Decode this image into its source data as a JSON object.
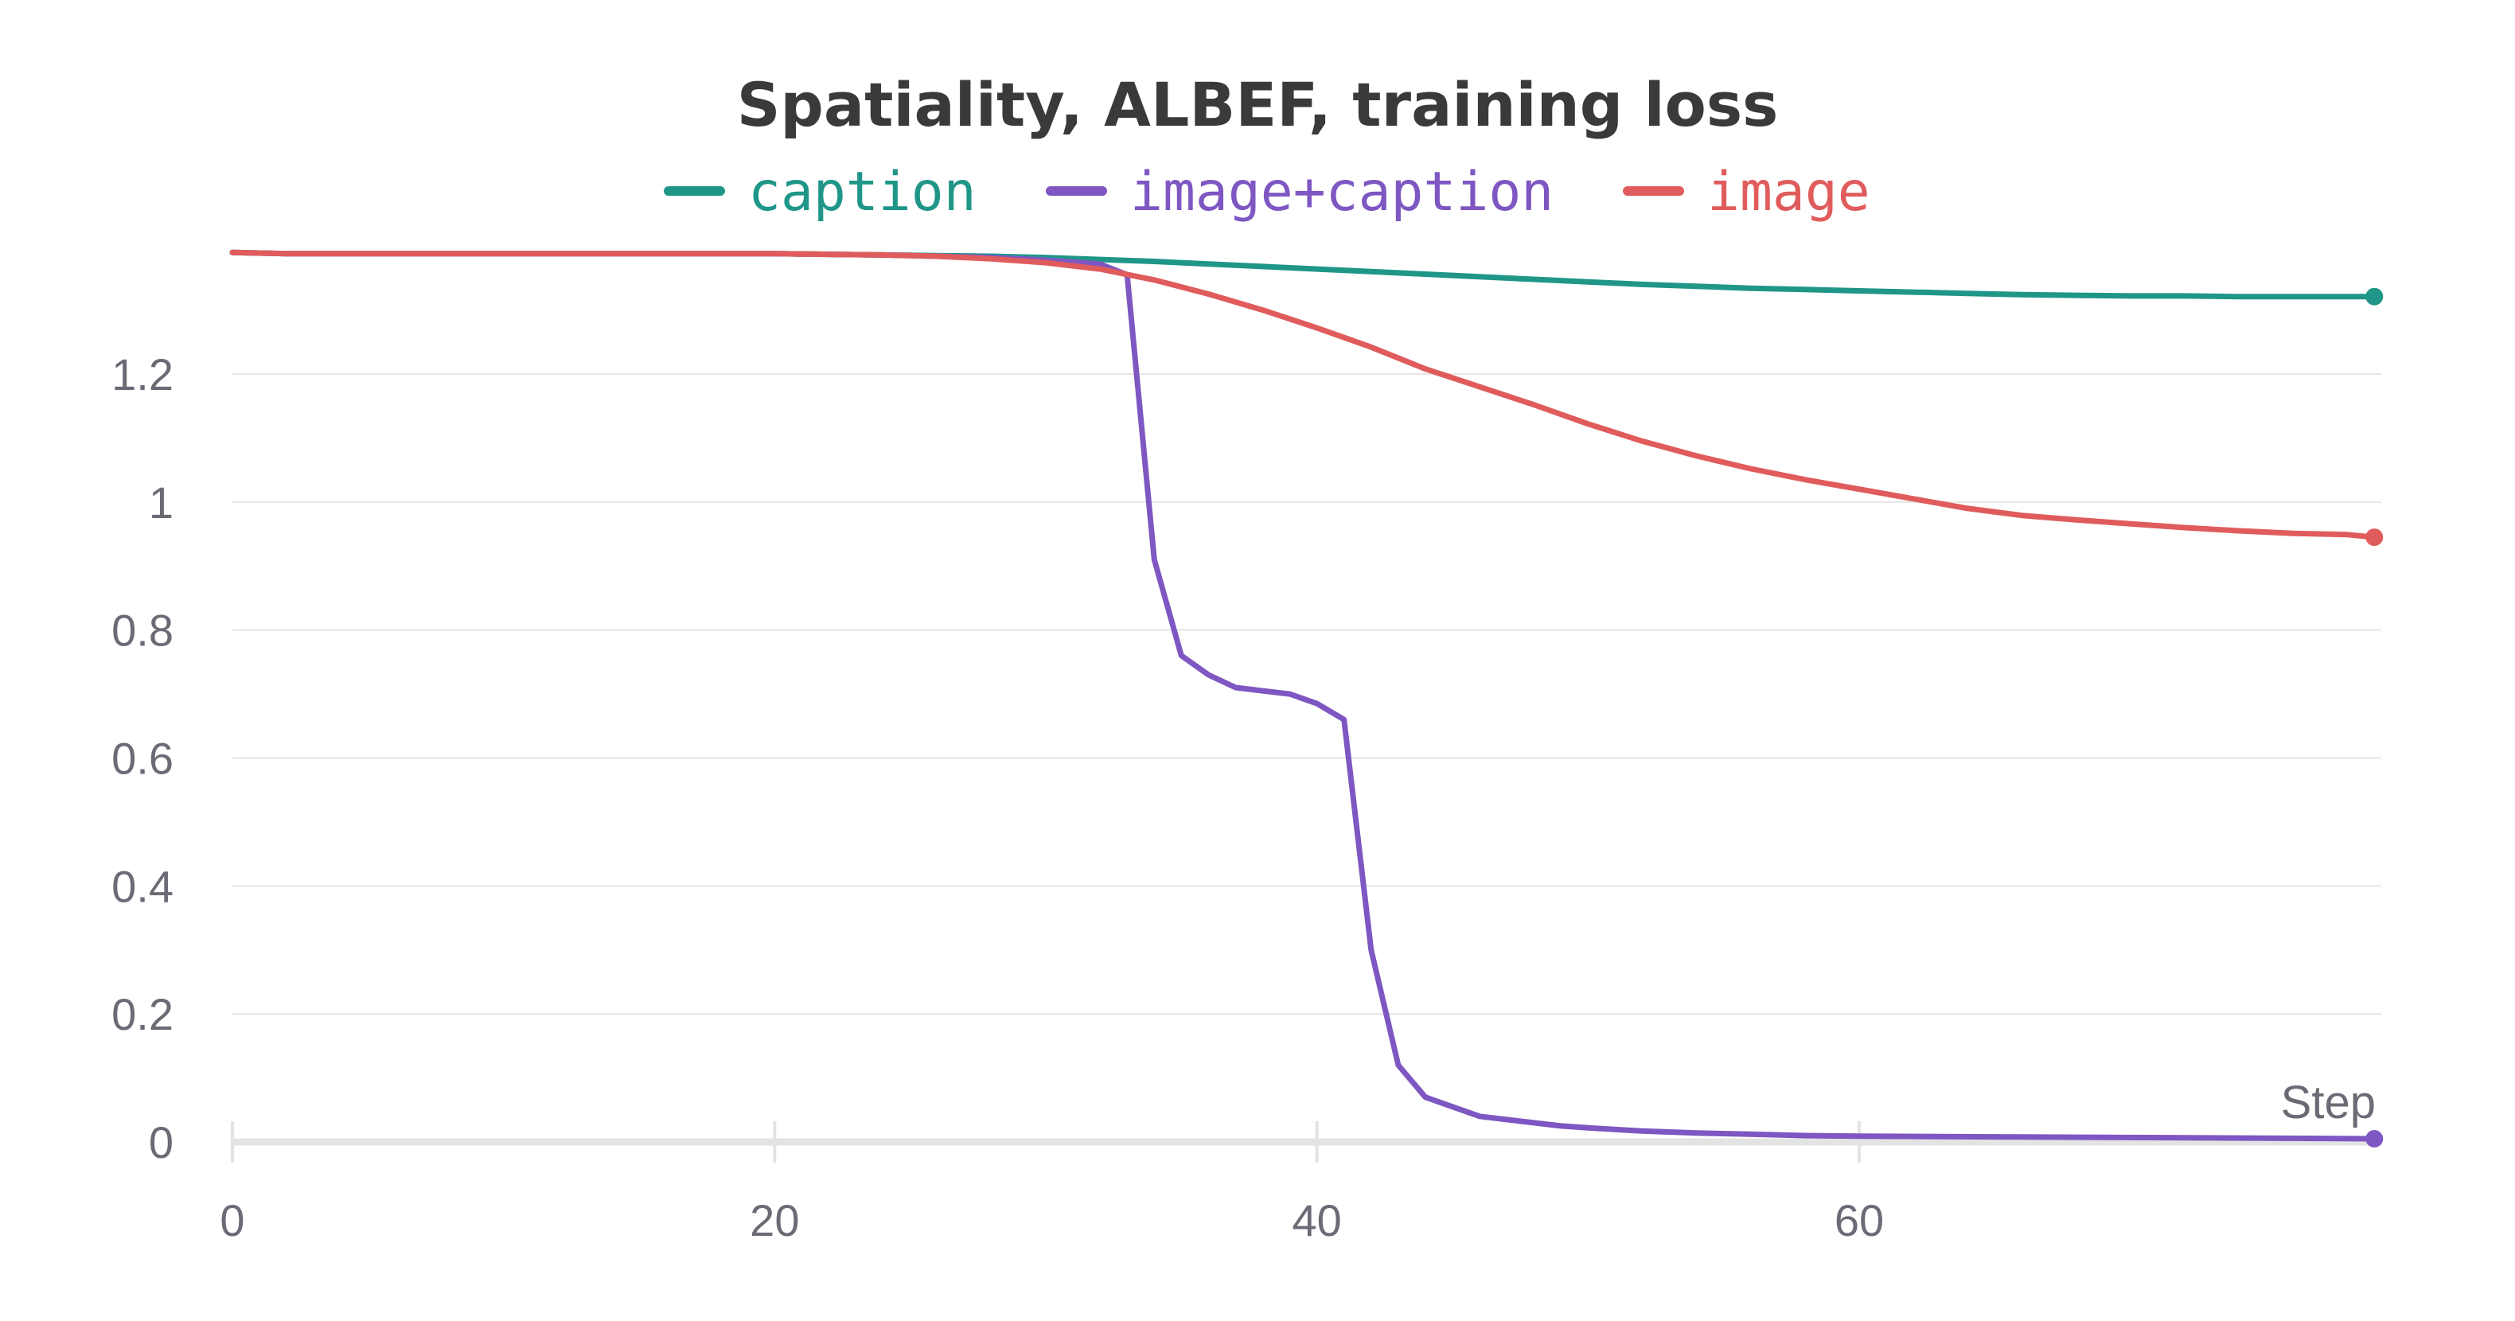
{
  "chart_data": {
    "type": "line",
    "title": "Spatiality, ALBEF, training loss",
    "xlabel": "Step",
    "ylabel": "",
    "xlim": [
      0,
      79
    ],
    "ylim": [
      0,
      1.39
    ],
    "x_ticks": [
      "0",
      "20",
      "40",
      "60"
    ],
    "x_tick_values": [
      0,
      20,
      40,
      60
    ],
    "y_ticks": [
      "0",
      "0.2",
      "0.4",
      "0.6",
      "0.8",
      "1",
      "1.2"
    ],
    "y_tick_values": [
      0,
      0.2,
      0.4,
      0.6,
      0.8,
      1,
      1.2
    ],
    "grid": true,
    "legend_position": "top",
    "series": [
      {
        "name": "caption",
        "color": "#1f9688",
        "x": [
          0,
          2,
          4,
          6,
          8,
          10,
          12,
          14,
          16,
          18,
          20,
          22,
          24,
          26,
          28,
          30,
          32,
          34,
          36,
          38,
          40,
          42,
          44,
          46,
          48,
          50,
          52,
          54,
          56,
          58,
          60,
          62,
          64,
          66,
          68,
          70,
          72,
          74,
          76,
          78,
          79
        ],
        "y": [
          1.39,
          1.388,
          1.388,
          1.388,
          1.388,
          1.388,
          1.388,
          1.388,
          1.388,
          1.388,
          1.388,
          1.387,
          1.386,
          1.385,
          1.384,
          1.382,
          1.379,
          1.376,
          1.372,
          1.368,
          1.364,
          1.36,
          1.356,
          1.352,
          1.348,
          1.344,
          1.34,
          1.337,
          1.334,
          1.332,
          1.33,
          1.328,
          1.326,
          1.324,
          1.323,
          1.322,
          1.322,
          1.321,
          1.321,
          1.321,
          1.321
        ]
      },
      {
        "name": "image+caption",
        "color": "#7e57c2",
        "x": [
          0,
          2,
          4,
          6,
          8,
          10,
          12,
          14,
          16,
          18,
          20,
          22,
          24,
          26,
          28,
          30,
          32,
          33,
          34,
          35,
          36,
          37,
          38,
          39,
          40,
          41,
          42,
          43,
          44,
          45,
          46,
          47,
          48,
          49,
          50,
          52,
          54,
          56,
          58,
          60,
          65,
          70,
          75,
          79
        ],
        "y": [
          1.39,
          1.388,
          1.388,
          1.388,
          1.388,
          1.388,
          1.388,
          1.388,
          1.388,
          1.388,
          1.388,
          1.387,
          1.386,
          1.384,
          1.382,
          1.378,
          1.372,
          1.355,
          0.91,
          0.76,
          0.73,
          0.71,
          0.705,
          0.7,
          0.685,
          0.66,
          0.3,
          0.12,
          0.07,
          0.055,
          0.04,
          0.035,
          0.03,
          0.025,
          0.022,
          0.017,
          0.014,
          0.012,
          0.01,
          0.009,
          0.008,
          0.007,
          0.006,
          0.005
        ]
      },
      {
        "name": "image",
        "color": "#e05c5c",
        "x": [
          0,
          2,
          4,
          6,
          8,
          10,
          12,
          14,
          16,
          18,
          20,
          22,
          24,
          26,
          28,
          30,
          32,
          34,
          36,
          38,
          40,
          42,
          44,
          46,
          48,
          50,
          52,
          54,
          56,
          58,
          60,
          62,
          64,
          66,
          68,
          70,
          72,
          74,
          76,
          78,
          79
        ],
        "y": [
          1.39,
          1.388,
          1.388,
          1.388,
          1.388,
          1.388,
          1.388,
          1.388,
          1.388,
          1.388,
          1.388,
          1.387,
          1.386,
          1.384,
          1.38,
          1.374,
          1.364,
          1.347,
          1.325,
          1.3,
          1.272,
          1.242,
          1.208,
          1.18,
          1.152,
          1.122,
          1.095,
          1.072,
          1.052,
          1.035,
          1.02,
          1.005,
          0.99,
          0.979,
          0.972,
          0.966,
          0.96,
          0.955,
          0.951,
          0.949,
          0.945
        ]
      }
    ]
  }
}
